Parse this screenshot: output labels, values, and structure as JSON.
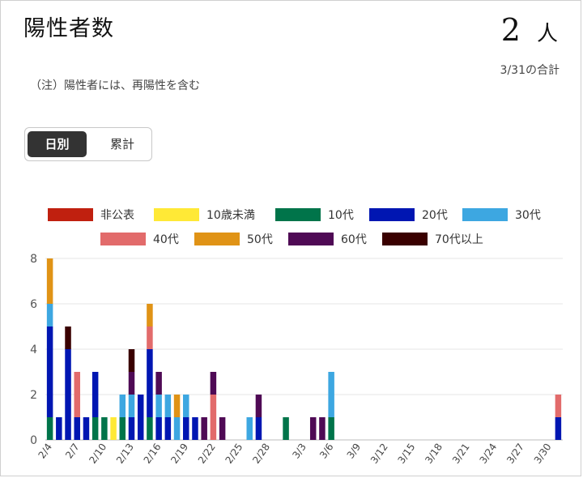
{
  "header": {
    "title": "陽性者数",
    "total_value": "2",
    "total_unit": "人",
    "total_date": "3/31の合計",
    "note": "（注）陽性者には、再陽性を含む"
  },
  "toggle": {
    "daily": "日別",
    "cumulative": "累計",
    "selected": "daily"
  },
  "chart_data": {
    "type": "bar",
    "stacked": true,
    "ylim": [
      0,
      8
    ],
    "yticks": [
      0,
      2,
      4,
      6,
      8
    ],
    "grid": true,
    "legend_position": "top",
    "dates": [
      "2/4",
      "2/5",
      "2/6",
      "2/7",
      "2/8",
      "2/9",
      "2/10",
      "2/11",
      "2/12",
      "2/13",
      "2/14",
      "2/15",
      "2/16",
      "2/17",
      "2/18",
      "2/19",
      "2/20",
      "2/21",
      "2/22",
      "2/23",
      "2/24",
      "2/25",
      "2/26",
      "2/27",
      "2/28",
      "2/29",
      "3/1",
      "3/2",
      "3/3",
      "3/4",
      "3/5",
      "3/6",
      "3/7",
      "3/8",
      "3/9",
      "3/10",
      "3/11",
      "3/12",
      "3/13",
      "3/14",
      "3/15",
      "3/16",
      "3/17",
      "3/18",
      "3/19",
      "3/20",
      "3/21",
      "3/22",
      "3/23",
      "3/24",
      "3/25",
      "3/26",
      "3/27",
      "3/28",
      "3/29",
      "3/30",
      "3/31"
    ],
    "x_tick_labels": [
      "2/4",
      "2/7",
      "2/10",
      "2/13",
      "2/16",
      "2/19",
      "2/22",
      "2/25",
      "2/28",
      "3/3",
      "3/6",
      "3/9",
      "3/12",
      "3/15",
      "3/18",
      "3/21",
      "3/24",
      "3/27",
      "3/30"
    ],
    "series": [
      {
        "name": "非公表",
        "color": "#c0200f",
        "values": [
          0,
          0,
          0,
          0,
          0,
          0,
          0,
          0,
          0,
          0,
          0,
          0,
          0,
          0,
          0,
          0,
          0,
          0,
          0,
          0,
          0,
          0,
          0,
          0,
          0,
          0,
          0,
          0,
          0,
          0,
          0,
          0,
          0,
          0,
          0,
          0,
          0,
          0,
          0,
          0,
          0,
          0,
          0,
          0,
          0,
          0,
          0,
          0,
          0,
          0,
          0,
          0,
          0,
          0,
          0,
          0,
          0
        ]
      },
      {
        "name": "10歳未満",
        "color": "#ffe936",
        "values": [
          0,
          0,
          0,
          0,
          0,
          0,
          0,
          1,
          0,
          0,
          0,
          0,
          0,
          0,
          0,
          0,
          0,
          0,
          0,
          0,
          0,
          0,
          0,
          0,
          0,
          0,
          0,
          0,
          0,
          0,
          0,
          0,
          0,
          0,
          0,
          0,
          0,
          0,
          0,
          0,
          0,
          0,
          0,
          0,
          0,
          0,
          0,
          0,
          0,
          0,
          0,
          0,
          0,
          0,
          0,
          0,
          0
        ]
      },
      {
        "name": "10代",
        "color": "#00744a",
        "values": [
          1,
          0,
          0,
          0,
          0,
          1,
          1,
          0,
          1,
          0,
          0,
          1,
          0,
          0,
          0,
          0,
          0,
          0,
          0,
          0,
          0,
          0,
          0,
          0,
          0,
          0,
          1,
          0,
          0,
          0,
          0,
          1,
          0,
          0,
          0,
          0,
          0,
          0,
          0,
          0,
          0,
          0,
          0,
          0,
          0,
          0,
          0,
          0,
          0,
          0,
          0,
          0,
          0,
          0,
          0,
          0,
          0
        ]
      },
      {
        "name": "20代",
        "color": "#0016b2",
        "values": [
          4,
          1,
          4,
          1,
          1,
          2,
          0,
          0,
          0,
          1,
          2,
          3,
          1,
          1,
          0,
          1,
          1,
          0,
          0,
          0,
          0,
          0,
          0,
          1,
          0,
          0,
          0,
          0,
          0,
          0,
          0,
          0,
          0,
          0,
          0,
          0,
          0,
          0,
          0,
          0,
          0,
          0,
          0,
          0,
          0,
          0,
          0,
          0,
          0,
          0,
          0,
          0,
          0,
          0,
          0,
          0,
          1
        ]
      },
      {
        "name": "30代",
        "color": "#3da7e1",
        "values": [
          1,
          0,
          0,
          0,
          0,
          0,
          0,
          0,
          1,
          1,
          0,
          0,
          1,
          1,
          1,
          1,
          0,
          0,
          0,
          0,
          0,
          0,
          1,
          0,
          0,
          0,
          0,
          0,
          0,
          0,
          0,
          2,
          0,
          0,
          0,
          0,
          0,
          0,
          0,
          0,
          0,
          0,
          0,
          0,
          0,
          0,
          0,
          0,
          0,
          0,
          0,
          0,
          0,
          0,
          0,
          0,
          0
        ]
      },
      {
        "name": "40代",
        "color": "#e26b6b",
        "values": [
          0,
          0,
          0,
          2,
          0,
          0,
          0,
          0,
          0,
          0,
          0,
          1,
          0,
          0,
          0,
          0,
          0,
          0,
          2,
          0,
          0,
          0,
          0,
          0,
          0,
          0,
          0,
          0,
          0,
          0,
          0,
          0,
          0,
          0,
          0,
          0,
          0,
          0,
          0,
          0,
          0,
          0,
          0,
          0,
          0,
          0,
          0,
          0,
          0,
          0,
          0,
          0,
          0,
          0,
          0,
          0,
          1
        ]
      },
      {
        "name": "50代",
        "color": "#e09316",
        "values": [
          2,
          0,
          0,
          0,
          0,
          0,
          0,
          0,
          0,
          0,
          0,
          1,
          0,
          0,
          1,
          0,
          0,
          0,
          0,
          0,
          0,
          0,
          0,
          0,
          0,
          0,
          0,
          0,
          0,
          0,
          0,
          0,
          0,
          0,
          0,
          0,
          0,
          0,
          0,
          0,
          0,
          0,
          0,
          0,
          0,
          0,
          0,
          0,
          0,
          0,
          0,
          0,
          0,
          0,
          0,
          0,
          0
        ]
      },
      {
        "name": "60代",
        "color": "#4f0a55",
        "values": [
          0,
          0,
          0,
          0,
          0,
          0,
          0,
          0,
          0,
          1,
          0,
          0,
          1,
          0,
          0,
          0,
          0,
          1,
          1,
          1,
          0,
          0,
          0,
          1,
          0,
          0,
          0,
          0,
          0,
          1,
          1,
          0,
          0,
          0,
          0,
          0,
          0,
          0,
          0,
          0,
          0,
          0,
          0,
          0,
          0,
          0,
          0,
          0,
          0,
          0,
          0,
          0,
          0,
          0,
          0,
          0,
          0
        ]
      },
      {
        "name": "70代以上",
        "color": "#3a0000",
        "values": [
          0,
          0,
          1,
          0,
          0,
          0,
          0,
          0,
          0,
          1,
          0,
          0,
          0,
          0,
          0,
          0,
          0,
          0,
          0,
          0,
          0,
          0,
          0,
          0,
          0,
          0,
          0,
          0,
          0,
          0,
          0,
          0,
          0,
          0,
          0,
          0,
          0,
          0,
          0,
          0,
          0,
          0,
          0,
          0,
          0,
          0,
          0,
          0,
          0,
          0,
          0,
          0,
          0,
          0,
          0,
          0,
          0
        ]
      }
    ]
  }
}
